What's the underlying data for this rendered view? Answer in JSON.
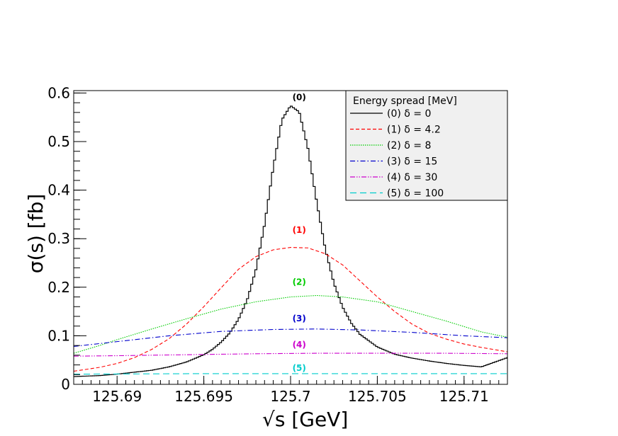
{
  "chart_data": {
    "type": "line",
    "xlabel": "√s   [GeV]",
    "ylabel": "σ(s) [fb]",
    "xlim": [
      125.6875,
      125.7125
    ],
    "ylim": [
      0,
      0.605
    ],
    "x_ticks": [
      "125.69",
      "125.695",
      "125.7",
      "125.705",
      "125.71"
    ],
    "x_tick_values": [
      125.69,
      125.695,
      125.7,
      125.705,
      125.71
    ],
    "y_ticks": [
      "0",
      "0.1",
      "0.2",
      "0.3",
      "0.4",
      "0.5",
      "0.6"
    ],
    "y_tick_values": [
      0,
      0.1,
      0.2,
      0.3,
      0.4,
      0.5,
      0.6
    ],
    "legend": {
      "title": "Energy spread [MeV]",
      "position": "top-right",
      "entries": [
        "(0) δ = 0",
        "(1) δ = 4.2",
        "(2) δ = 8",
        "(3) δ = 15",
        "(4) δ = 30",
        "(5) δ = 100"
      ]
    },
    "series": [
      {
        "name": "(0) δ = 0",
        "label": "(0)",
        "color": "#000000",
        "style": "solid-step",
        "label_pos": [
          125.7005,
          0.585
        ],
        "points": [
          [
            125.6875,
            0.016
          ],
          [
            125.689,
            0.018
          ],
          [
            125.69,
            0.021
          ],
          [
            125.691,
            0.025
          ],
          [
            125.692,
            0.029
          ],
          [
            125.693,
            0.036
          ],
          [
            125.694,
            0.046
          ],
          [
            125.695,
            0.061
          ],
          [
            125.6955,
            0.072
          ],
          [
            125.696,
            0.087
          ],
          [
            125.6965,
            0.106
          ],
          [
            125.697,
            0.134
          ],
          [
            125.6975,
            0.174
          ],
          [
            125.698,
            0.236
          ],
          [
            125.6985,
            0.329
          ],
          [
            125.699,
            0.446
          ],
          [
            125.6995,
            0.545
          ],
          [
            125.7,
            0.574
          ],
          [
            125.7005,
            0.561
          ],
          [
            125.701,
            0.486
          ],
          [
            125.7015,
            0.377
          ],
          [
            125.702,
            0.279
          ],
          [
            125.7025,
            0.208
          ],
          [
            125.703,
            0.159
          ],
          [
            125.7035,
            0.126
          ],
          [
            125.704,
            0.103
          ],
          [
            125.705,
            0.077
          ],
          [
            125.706,
            0.062
          ],
          [
            125.707,
            0.054
          ],
          [
            125.708,
            0.048
          ],
          [
            125.709,
            0.043
          ],
          [
            125.71,
            0.039
          ],
          [
            125.711,
            0.036
          ],
          [
            125.7125,
            0.055
          ]
        ]
      },
      {
        "name": "(1) δ = 4.2",
        "label": "(1)",
        "color": "#ff0000",
        "style": "dashed",
        "label_pos": [
          125.7005,
          0.312
        ],
        "points": [
          [
            125.6875,
            0.027
          ],
          [
            125.689,
            0.035
          ],
          [
            125.69,
            0.043
          ],
          [
            125.691,
            0.055
          ],
          [
            125.692,
            0.072
          ],
          [
            125.693,
            0.094
          ],
          [
            125.694,
            0.124
          ],
          [
            125.695,
            0.16
          ],
          [
            125.696,
            0.199
          ],
          [
            125.697,
            0.237
          ],
          [
            125.698,
            0.263
          ],
          [
            125.699,
            0.277
          ],
          [
            125.7,
            0.282
          ],
          [
            125.701,
            0.281
          ],
          [
            125.702,
            0.269
          ],
          [
            125.703,
            0.246
          ],
          [
            125.704,
            0.213
          ],
          [
            125.705,
            0.18
          ],
          [
            125.706,
            0.15
          ],
          [
            125.707,
            0.124
          ],
          [
            125.708,
            0.105
          ],
          [
            125.709,
            0.093
          ],
          [
            125.71,
            0.083
          ],
          [
            125.711,
            0.076
          ],
          [
            125.712,
            0.07
          ],
          [
            125.7125,
            0.067
          ]
        ]
      },
      {
        "name": "(2) δ = 8",
        "label": "(2)",
        "color": "#00cc00",
        "style": "dotted",
        "label_pos": [
          125.7005,
          0.205
        ],
        "points": [
          [
            125.6875,
            0.064
          ],
          [
            125.689,
            0.08
          ],
          [
            125.69,
            0.092
          ],
          [
            125.692,
            0.114
          ],
          [
            125.694,
            0.135
          ],
          [
            125.696,
            0.155
          ],
          [
            125.698,
            0.17
          ],
          [
            125.7,
            0.18
          ],
          [
            125.7015,
            0.183
          ],
          [
            125.703,
            0.18
          ],
          [
            125.705,
            0.17
          ],
          [
            125.707,
            0.15
          ],
          [
            125.709,
            0.13
          ],
          [
            125.711,
            0.108
          ],
          [
            125.7125,
            0.097
          ]
        ]
      },
      {
        "name": "(3) δ = 15",
        "label": "(3)",
        "color": "#0000cc",
        "style": "dashdot",
        "label_pos": [
          125.7005,
          0.13
        ],
        "points": [
          [
            125.6875,
            0.078
          ],
          [
            125.69,
            0.088
          ],
          [
            125.693,
            0.1
          ],
          [
            125.696,
            0.109
          ],
          [
            125.699,
            0.113
          ],
          [
            125.7015,
            0.114
          ],
          [
            125.704,
            0.112
          ],
          [
            125.707,
            0.107
          ],
          [
            125.71,
            0.1
          ],
          [
            125.7125,
            0.096
          ]
        ]
      },
      {
        "name": "(4) δ = 30",
        "label": "(4)",
        "color": "#cc00cc",
        "style": "dashdotdot",
        "label_pos": [
          125.7005,
          0.076
        ],
        "points": [
          [
            125.6875,
            0.058
          ],
          [
            125.69,
            0.059
          ],
          [
            125.694,
            0.061
          ],
          [
            125.698,
            0.063
          ],
          [
            125.7015,
            0.064
          ],
          [
            125.705,
            0.064
          ],
          [
            125.709,
            0.064
          ],
          [
            125.7125,
            0.063
          ]
        ]
      },
      {
        "name": "(5) δ = 100",
        "label": "(5)",
        "color": "#00cccc",
        "style": "longdash",
        "label_pos": [
          125.7005,
          0.028
        ],
        "points": [
          [
            125.6875,
            0.021
          ],
          [
            125.695,
            0.022
          ],
          [
            125.7,
            0.022
          ],
          [
            125.705,
            0.022
          ],
          [
            125.7125,
            0.022
          ]
        ]
      }
    ]
  }
}
